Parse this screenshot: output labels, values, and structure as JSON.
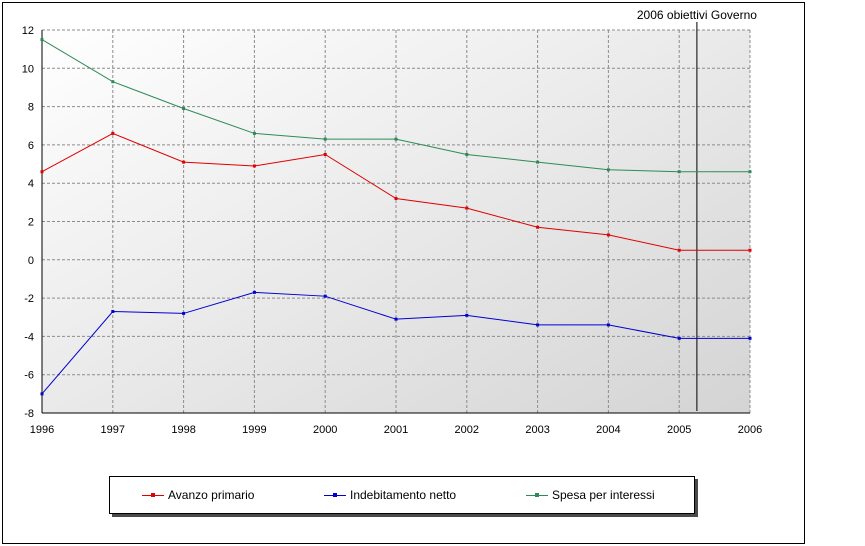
{
  "chart_data": {
    "type": "line",
    "x": [
      "1996",
      "1997",
      "1998",
      "1999",
      "2000",
      "2001",
      "2002",
      "2003",
      "2004",
      "2005",
      "2006"
    ],
    "ylim": [
      -8,
      12
    ],
    "yticks": [
      "12",
      "10",
      "8",
      "6",
      "4",
      "2",
      "0",
      "-2",
      "-4",
      "-6",
      "-8"
    ],
    "grid": true,
    "legend_position": "bottom",
    "series": [
      {
        "name": "Avanzo primario",
        "color": "#e00000",
        "values": [
          4.6,
          6.6,
          5.1,
          4.9,
          5.5,
          3.2,
          2.7,
          1.7,
          1.3,
          0.5,
          0.5
        ]
      },
      {
        "name": "Indebitamento netto",
        "color": "#0000d0",
        "values": [
          -7.0,
          -2.7,
          -2.8,
          -1.7,
          -1.9,
          -3.1,
          -2.9,
          -3.4,
          -3.4,
          -4.1,
          -4.1
        ]
      },
      {
        "name": "Spesa per interessi",
        "color": "#2e8b57",
        "values": [
          11.5,
          9.3,
          7.9,
          6.6,
          6.3,
          6.3,
          5.5,
          5.1,
          4.7,
          4.6,
          4.6
        ]
      }
    ],
    "annotations": [
      {
        "text": "2006 obiettivi Governo",
        "x": 2005.25
      }
    ]
  }
}
